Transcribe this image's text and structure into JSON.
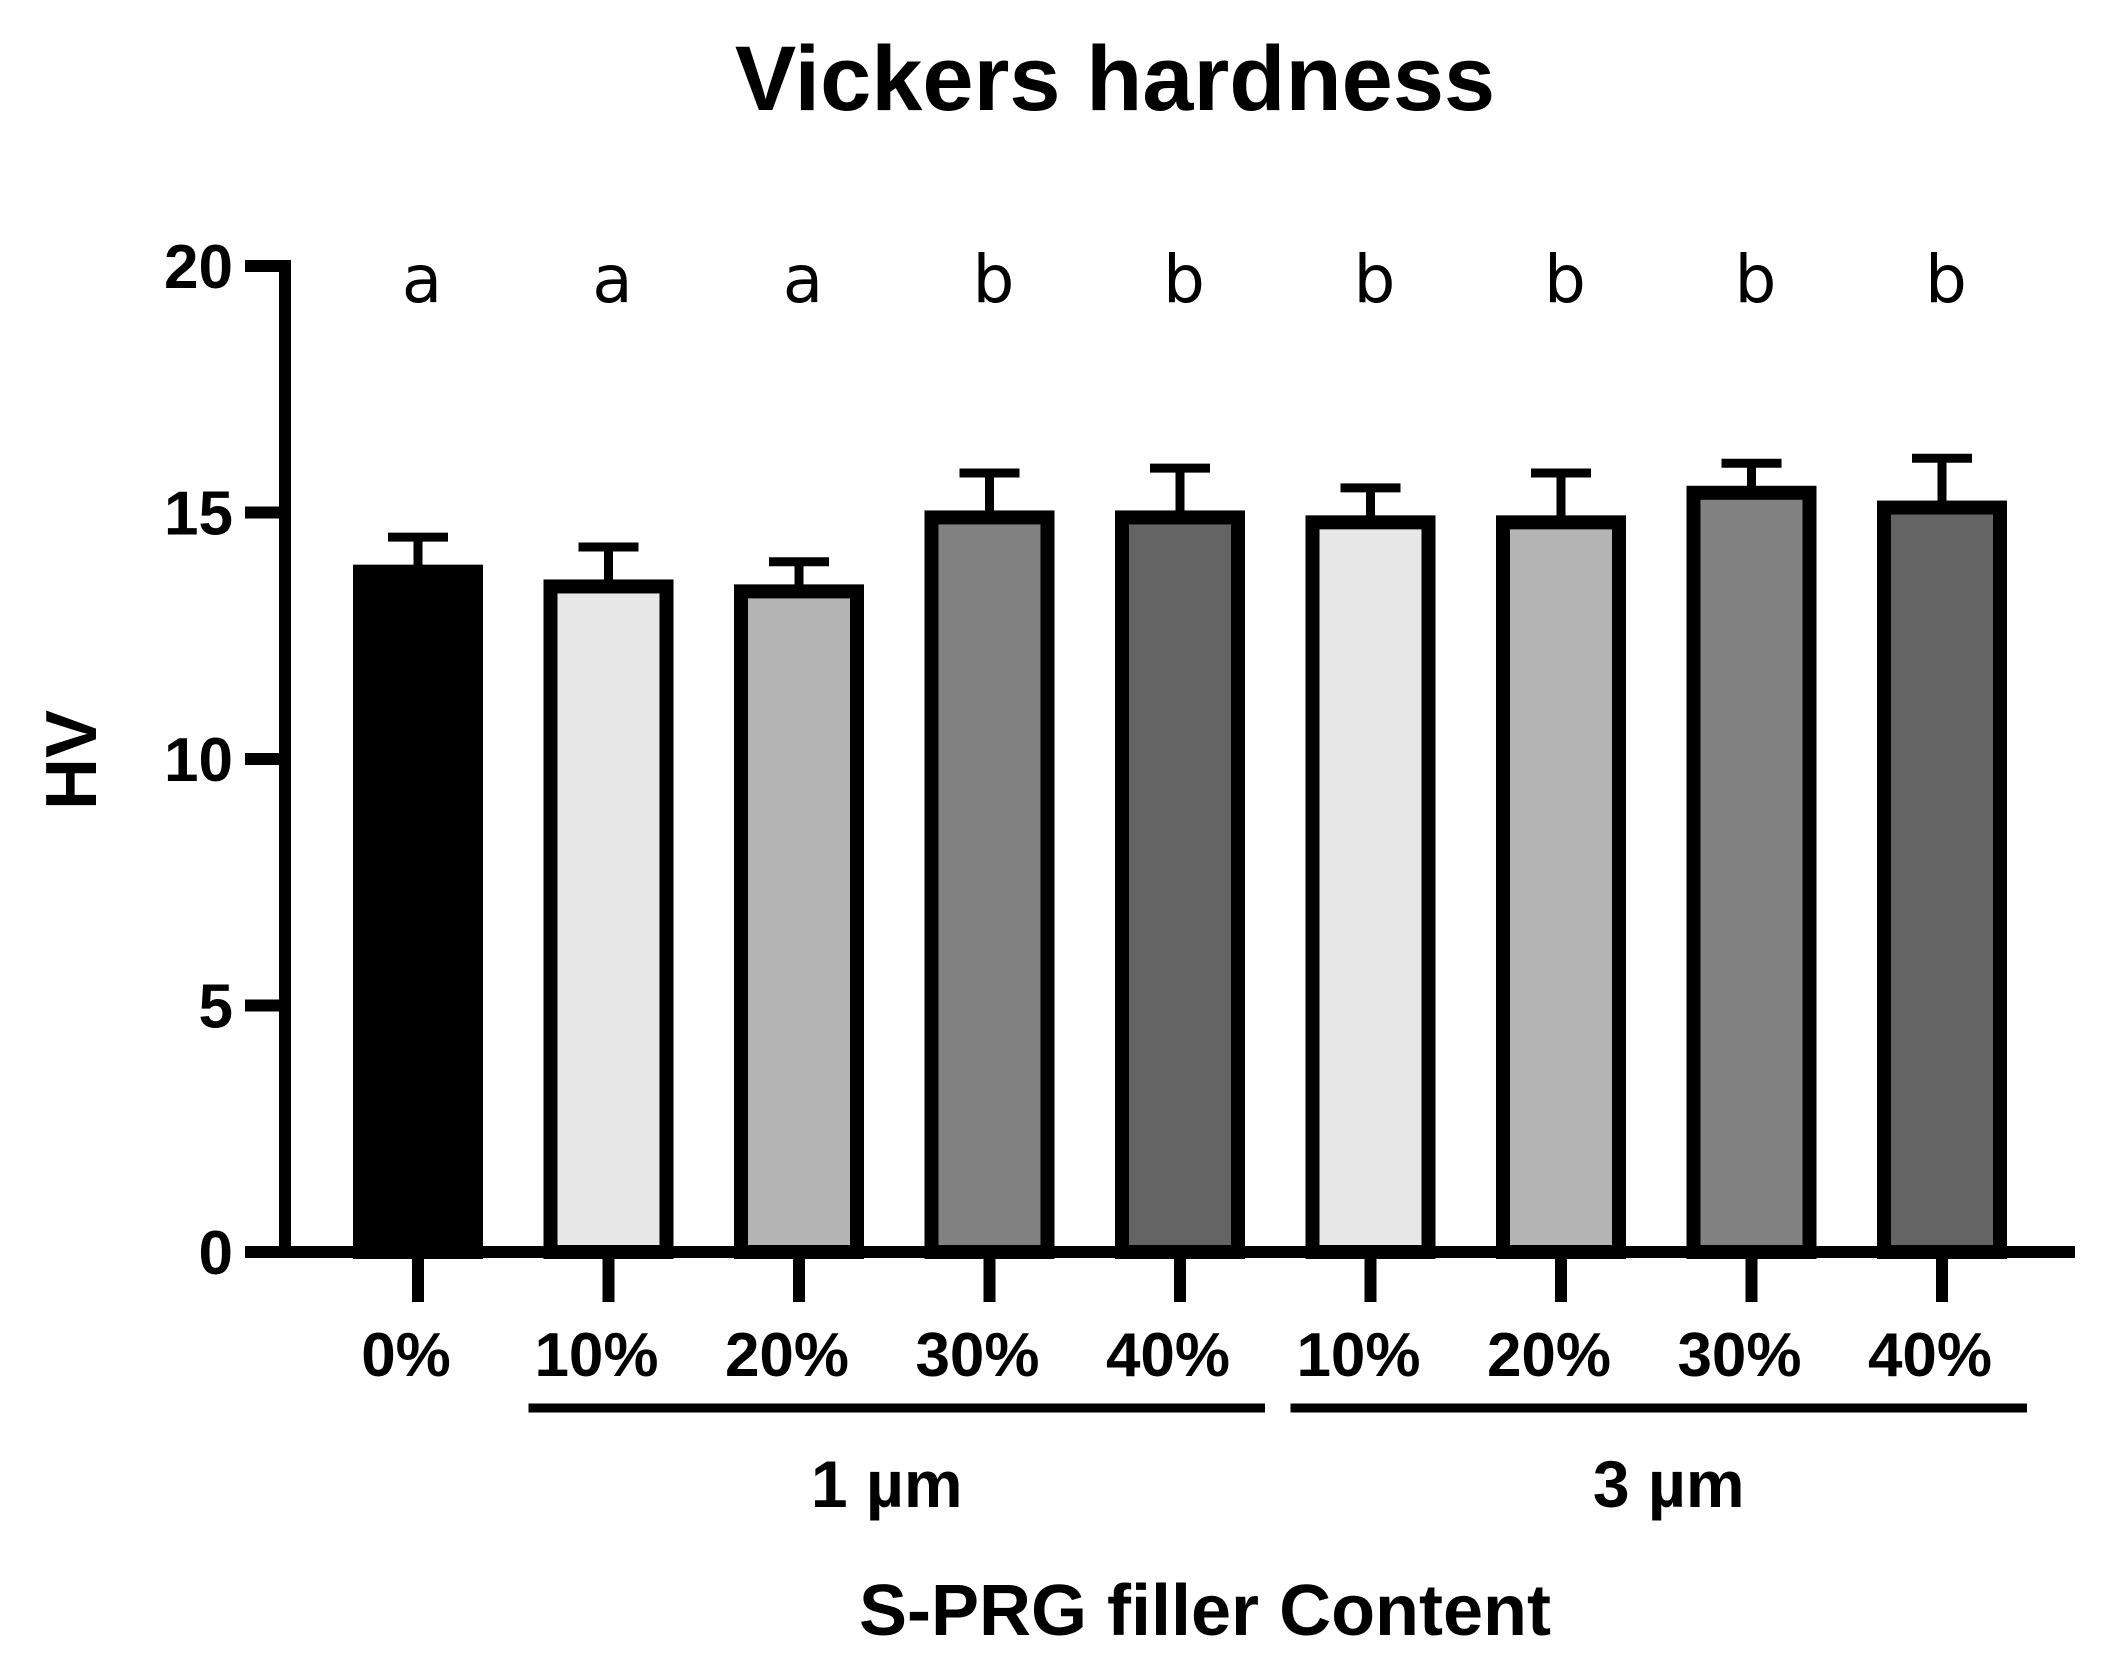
{
  "chart_data": {
    "type": "bar",
    "title": "Vickers hardness",
    "xlabel": "S-PRG filler Content",
    "ylabel": "HV",
    "ylim": [
      0,
      20
    ],
    "yticks": [
      0,
      5,
      10,
      15,
      20
    ],
    "categories": [
      "0%",
      "10%",
      "20%",
      "30%",
      "40%",
      "10%",
      "20%",
      "30%",
      "40%"
    ],
    "values": [
      13.8,
      13.5,
      13.4,
      14.9,
      14.9,
      14.8,
      14.8,
      15.4,
      15.1
    ],
    "errors": [
      0.7,
      0.8,
      0.6,
      0.9,
      1.0,
      0.7,
      1.0,
      0.6,
      1.0
    ],
    "significance": [
      "a",
      "a",
      "a",
      "b",
      "b",
      "b",
      "b",
      "b",
      "b"
    ],
    "fills": [
      "#000000",
      "#e6e7e6",
      "#b3b4b3",
      "#818281",
      "#636463",
      "#e6e7e6",
      "#b3b4b3",
      "#818281",
      "#636463"
    ],
    "groups": [
      {
        "label": "1 µm",
        "from": 1,
        "to": 4
      },
      {
        "label": "3 µm",
        "from": 5,
        "to": 8
      }
    ],
    "grid": false,
    "legend": "none"
  }
}
